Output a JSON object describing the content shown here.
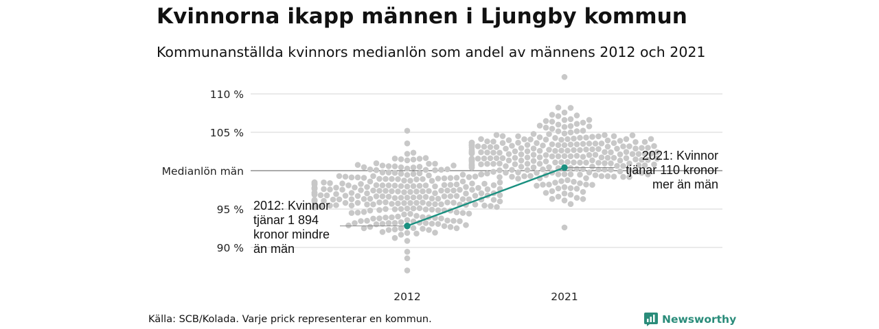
{
  "header": {
    "title": "Kvinnorna ikapp männen i Ljungby kommun",
    "subtitle": "Kommunanställda kvinnors medianlön som andel av männens 2012 och 2021"
  },
  "footer": {
    "source": "Källa: SCB/Kolada. Varje prick representerar en kommun.",
    "brand": "Newsworthy"
  },
  "colors": {
    "highlight": "#1a9080",
    "dots": "#c8c8c8",
    "grid": "#dddddd",
    "reference_line": "#555555",
    "brand": "#2a8c7a"
  },
  "chart_data": {
    "type": "scatter",
    "categories": [
      "2012",
      "2021"
    ],
    "y_tick_labels": [
      "90 %",
      "95 %",
      "Medianlön män",
      "105 %",
      "110 %"
    ],
    "y_tick_values": [
      90,
      95,
      100,
      105,
      110
    ],
    "ylim": [
      86,
      112.5
    ],
    "reference_line": 100,
    "highlight": {
      "values": [
        92.8,
        100.4
      ]
    },
    "annotations": [
      {
        "year": "2012",
        "lines": [
          "2012: Kvinnor",
          "tjänar 1 894",
          "kronor mindre",
          "än män"
        ]
      },
      {
        "year": "2021",
        "lines": [
          "2021: Kvinnor",
          "tjänar 110 kronor",
          "mer än män"
        ]
      }
    ],
    "distribution": [
      {
        "year": "2012",
        "min": 87.0,
        "max": 105.2,
        "center": 96.5,
        "spread": 2.2
      },
      {
        "year": "2021",
        "min": 92.6,
        "max": 112.2,
        "center": 101.9,
        "spread": 2.2
      }
    ]
  }
}
